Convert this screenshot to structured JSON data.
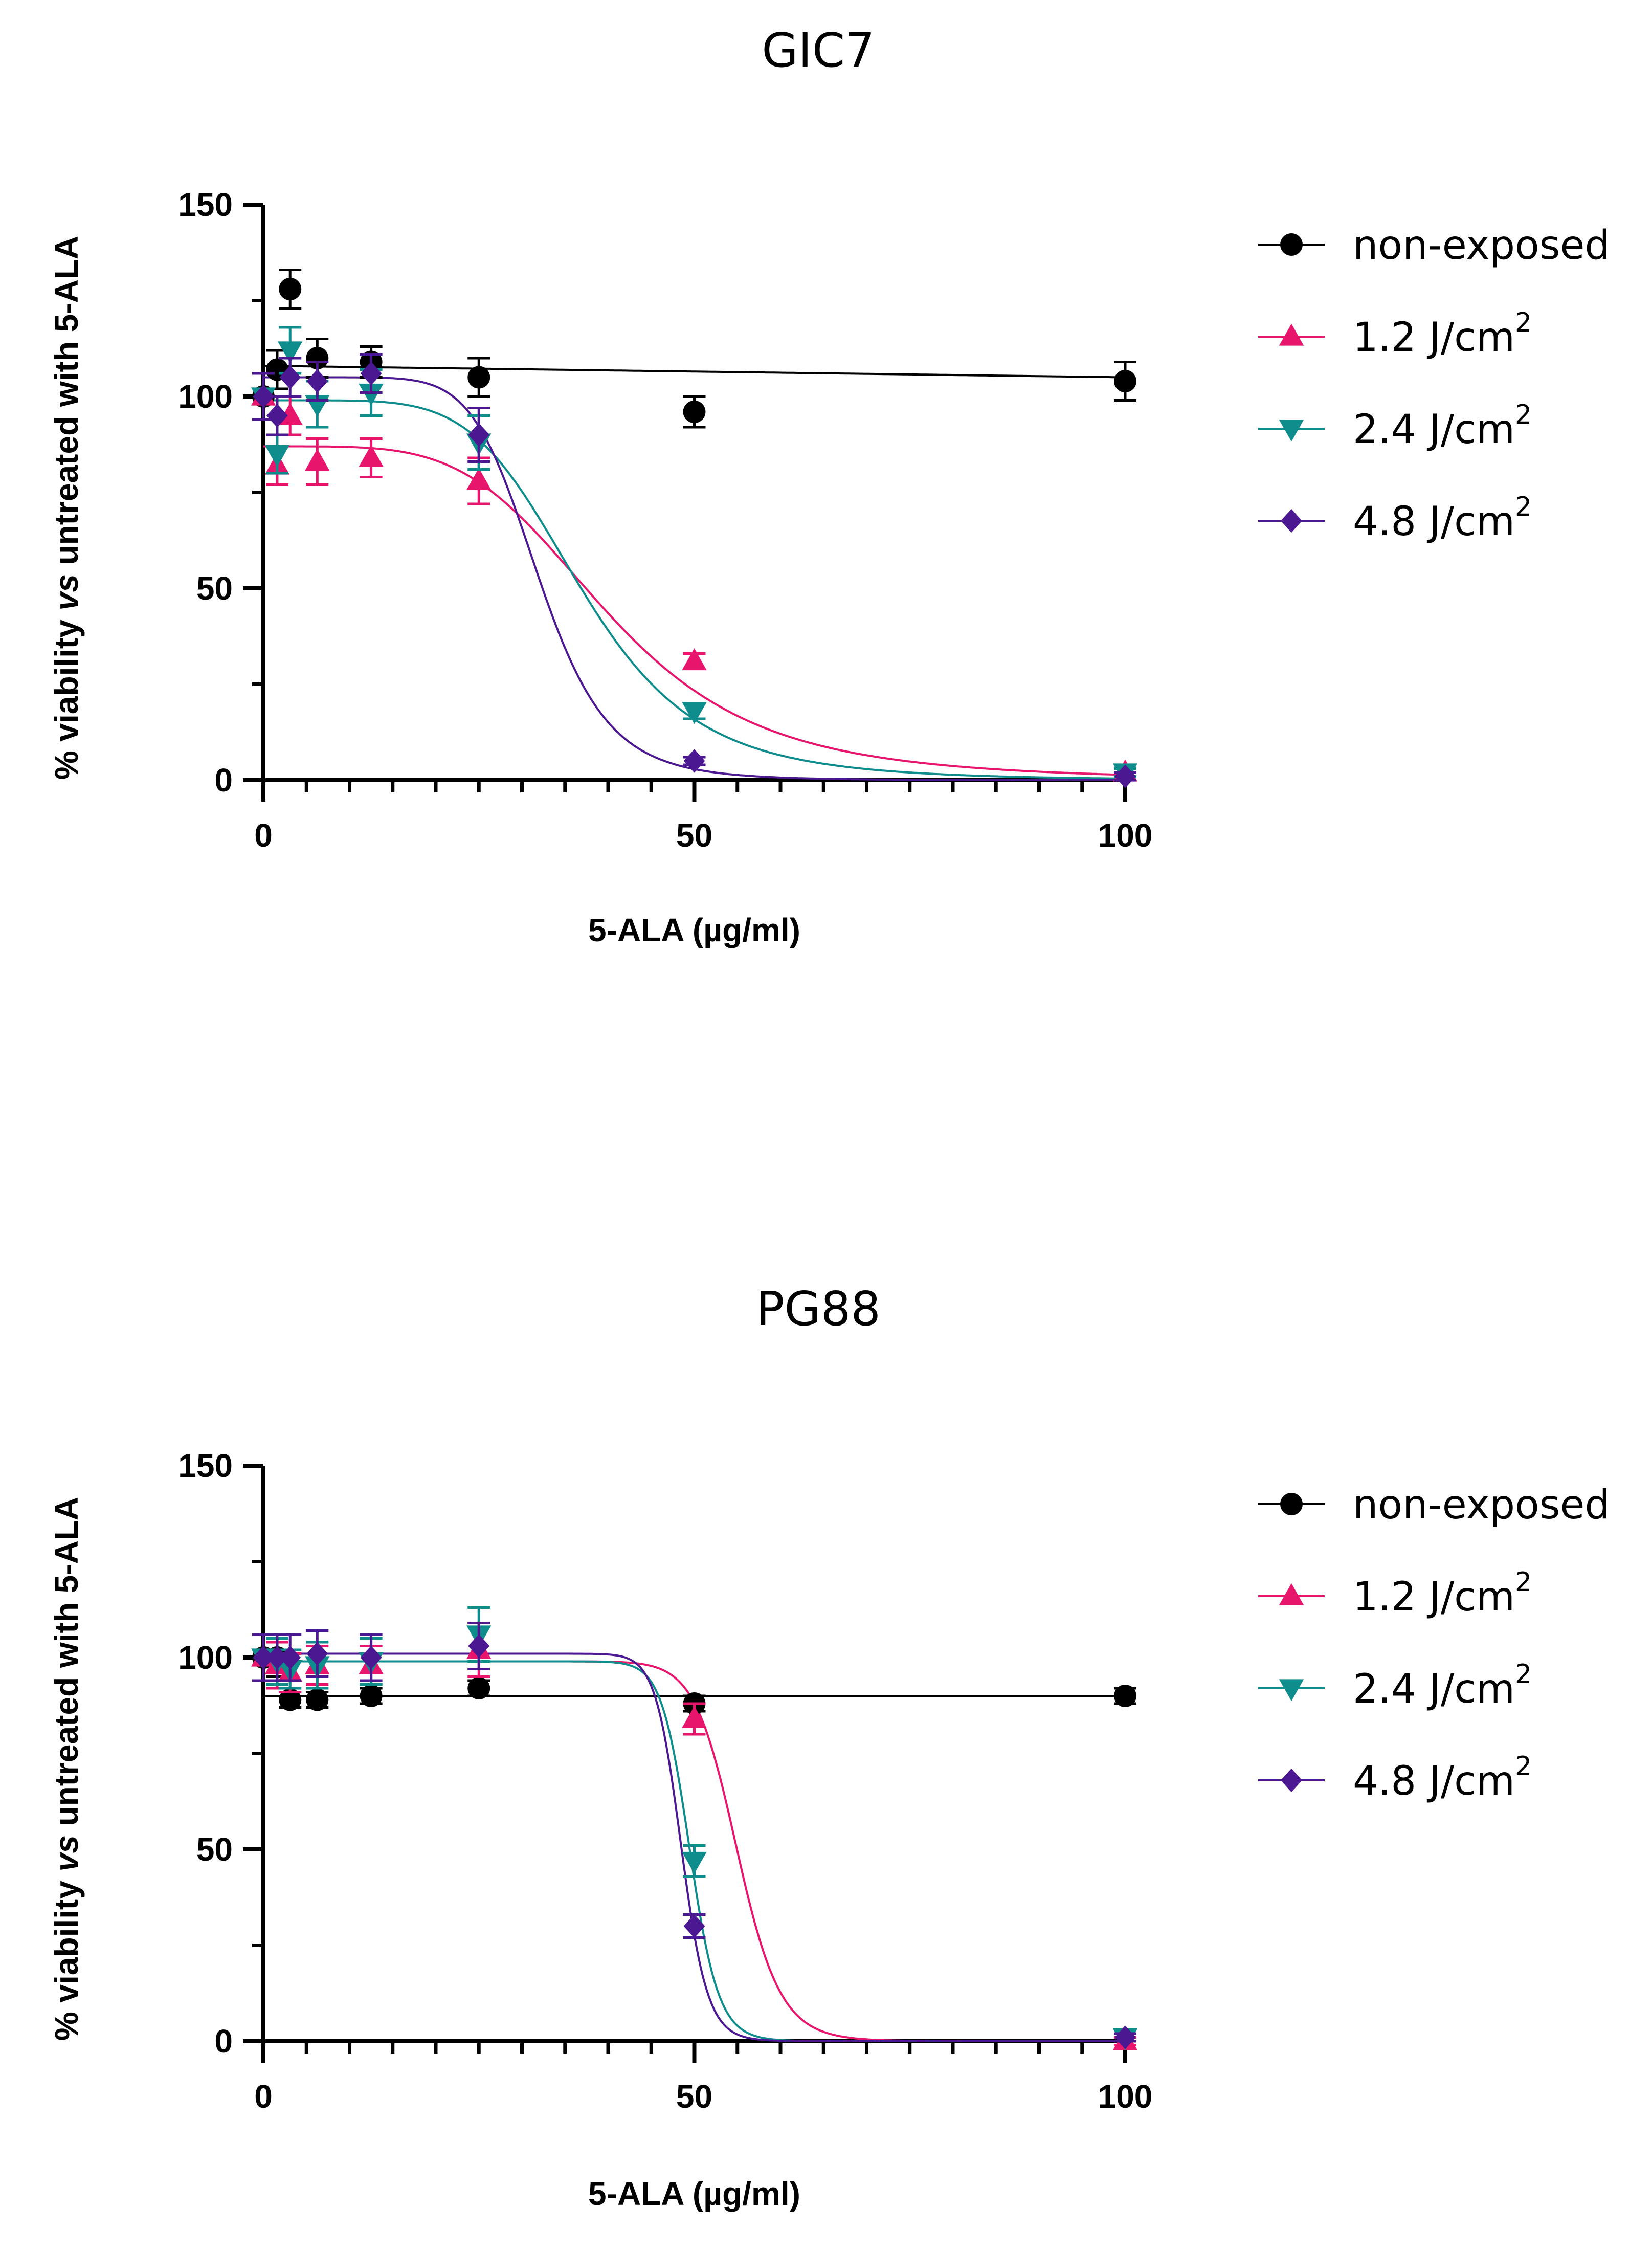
{
  "chart_data": [
    {
      "type": "line",
      "title": "GIC7",
      "xlabel": "5-ALA  (µg/ml)",
      "ylabel_prefix": "% viability ",
      "ylabel_italic": "vs",
      "ylabel_suffix": " untreated with 5-ALA",
      "xlim": [
        0,
        100
      ],
      "ylim": [
        0,
        150
      ],
      "x_ticks": [
        "0",
        "50",
        "100"
      ],
      "y_ticks": [
        "0",
        "50",
        "100",
        "150"
      ],
      "legend_position": "right",
      "series": [
        {
          "name": "non-exposed",
          "name_sup": "",
          "color": "#000000",
          "marker": "circle",
          "x": [
            0,
            1.6,
            3.1,
            6.25,
            12.5,
            25,
            50,
            100
          ],
          "y": [
            100,
            107,
            128,
            110,
            109,
            105,
            96,
            104
          ],
          "err": [
            6,
            5,
            5,
            5,
            4,
            5,
            4,
            5
          ],
          "fit": {
            "kind": "linear",
            "a": 108,
            "b": -0.03
          }
        },
        {
          "name": "1.2 J/cm",
          "name_sup": "2",
          "color": "#e8156d",
          "marker": "triangle-up",
          "x": [
            0,
            1.6,
            3.1,
            6.25,
            12.5,
            25,
            50,
            100
          ],
          "y": [
            100,
            82,
            95,
            83,
            84,
            78,
            31,
            2
          ],
          "err": [
            6,
            5,
            5,
            6,
            5,
            6,
            2,
            1
          ],
          "fit": {
            "kind": "hill",
            "top": 87,
            "bottom": 0,
            "ec50": 40,
            "h": 4.5
          }
        },
        {
          "name": "2.4 J/cm",
          "name_sup": "2",
          "color": "#0f8c8c",
          "marker": "triangle-down",
          "x": [
            0,
            1.6,
            3.1,
            6.25,
            12.5,
            25,
            50,
            100
          ],
          "y": [
            100,
            85,
            112,
            98,
            101,
            88,
            18,
            2
          ],
          "err": [
            6,
            5,
            6,
            6,
            6,
            7,
            2,
            1
          ],
          "fit": {
            "kind": "hill",
            "top": 99,
            "bottom": 0,
            "ec50": 37,
            "h": 5.5
          }
        },
        {
          "name": "4.8 J/cm",
          "name_sup": "2",
          "color": "#4b1891",
          "marker": "diamond",
          "x": [
            0,
            1.6,
            3.1,
            6.25,
            12.5,
            25,
            50,
            100
          ],
          "y": [
            100,
            95,
            105,
            104,
            106,
            90,
            5,
            1
          ],
          "err": [
            6,
            5,
            5,
            5,
            5,
            7,
            1,
            1
          ],
          "fit": {
            "kind": "hill",
            "top": 105,
            "bottom": 0,
            "ec50": 32,
            "h": 8
          }
        }
      ]
    },
    {
      "type": "line",
      "title": "PG88",
      "xlabel": "5-ALA  (µg/ml)",
      "ylabel_prefix": "% viability ",
      "ylabel_italic": "vs",
      "ylabel_suffix": " untreated with 5-ALA",
      "xlim": [
        0,
        100
      ],
      "ylim": [
        0,
        150
      ],
      "x_ticks": [
        "0",
        "50",
        "100"
      ],
      "y_ticks": [
        "0",
        "50",
        "100",
        "150"
      ],
      "legend_position": "right",
      "series": [
        {
          "name": "non-exposed",
          "name_sup": "",
          "color": "#000000",
          "marker": "circle",
          "x": [
            0,
            1.6,
            3.1,
            6.25,
            12.5,
            25,
            50,
            100
          ],
          "y": [
            100,
            100,
            89,
            89,
            90,
            92,
            88,
            90
          ],
          "err": [
            6,
            5,
            2,
            2,
            2,
            2,
            2,
            2
          ],
          "fit": {
            "kind": "linear",
            "a": 90,
            "b": 0
          }
        },
        {
          "name": "1.2 J/cm",
          "name_sup": "2",
          "color": "#e8156d",
          "marker": "triangle-up",
          "x": [
            0,
            1.6,
            3.1,
            6.25,
            12.5,
            25,
            50,
            100
          ],
          "y": [
            100,
            98,
            96,
            98,
            98,
            102,
            84,
            0
          ],
          "err": [
            6,
            6,
            5,
            5,
            5,
            7,
            4,
            1
          ],
          "fit": {
            "kind": "hill",
            "top": 99,
            "bottom": 0,
            "ec50": 55,
            "h": 22
          }
        },
        {
          "name": "2.4 J/cm",
          "name_sup": "2",
          "color": "#0f8c8c",
          "marker": "triangle-down",
          "x": [
            0,
            1.6,
            3.1,
            6.25,
            12.5,
            25,
            50,
            100
          ],
          "y": [
            100,
            99,
            97,
            98,
            99,
            106,
            47,
            1
          ],
          "err": [
            6,
            6,
            5,
            6,
            6,
            7,
            4,
            1
          ],
          "fit": {
            "kind": "hill",
            "top": 99,
            "bottom": 0,
            "ec50": 49.5,
            "h": 30
          }
        },
        {
          "name": "4.8 J/cm",
          "name_sup": "2",
          "color": "#4b1891",
          "marker": "diamond",
          "x": [
            0,
            1.6,
            3.1,
            6.25,
            12.5,
            25,
            50,
            100
          ],
          "y": [
            100,
            100,
            100,
            101,
            100,
            103,
            30,
            1
          ],
          "err": [
            6,
            6,
            6,
            6,
            6,
            6,
            3,
            1
          ],
          "fit": {
            "kind": "hill",
            "top": 101,
            "bottom": 0,
            "ec50": 48.5,
            "h": 32
          }
        }
      ]
    }
  ]
}
